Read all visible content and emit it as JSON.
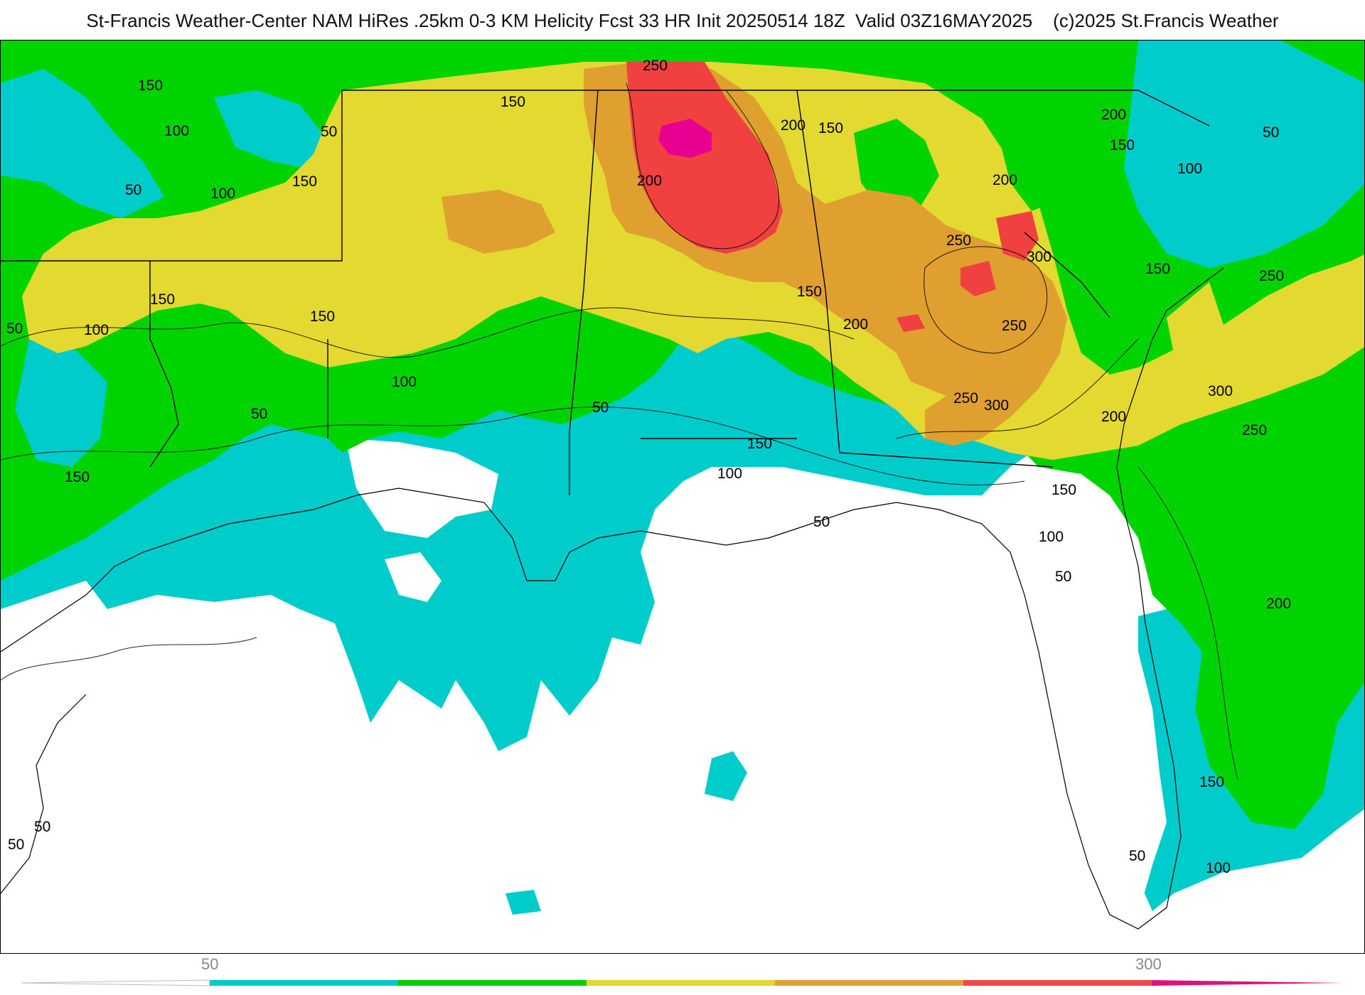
{
  "title": "St-Francis Weather-Center NAM HiRes .25km 0-3 KM Helicity Fcst 33 HR Init 20250514 18Z  Valid 03Z16MAY2025    (c)2025 St.Francis Weather",
  "colors": {
    "level_50": "#00cccc",
    "level_100": "#00d400",
    "level_150": "#e3d930",
    "level_200": "#e0a030",
    "level_250": "#f04040",
    "level_300": "#e80090",
    "below_50": "#ffffff"
  },
  "colorbar": {
    "tick_labels": [
      "50",
      "300"
    ],
    "segments": [
      {
        "color": "#ffffff"
      },
      {
        "color": "#00c8cc"
      },
      {
        "color": "#00d000"
      },
      {
        "color": "#e4d830"
      },
      {
        "color": "#e2a030"
      },
      {
        "color": "#f04848"
      },
      {
        "color": "#e0107a"
      }
    ]
  },
  "contour_labels": [
    "50",
    "100",
    "150",
    "200",
    "250",
    "300"
  ]
}
